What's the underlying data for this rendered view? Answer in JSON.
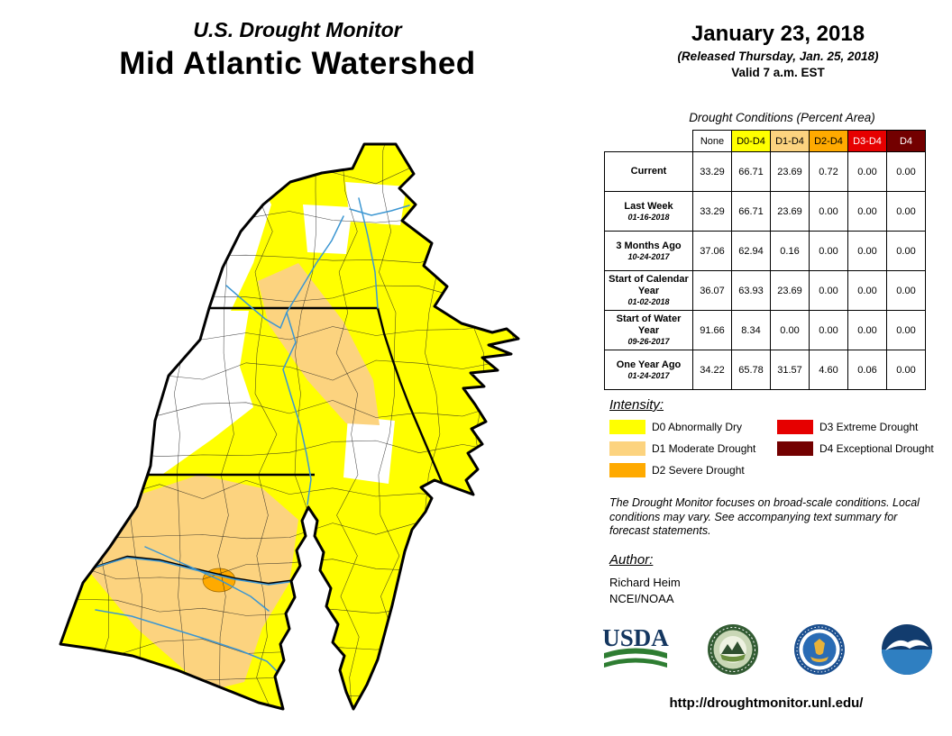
{
  "header": {
    "kicker": "U.S. Drought Monitor",
    "title": "Mid Atlantic Watershed",
    "date": "January 23, 2018",
    "released": "(Released Thursday, Jan. 25, 2018)",
    "valid": "Valid 7 a.m. EST"
  },
  "table": {
    "title": "Drought Conditions (Percent Area)",
    "columns": [
      "None",
      "D0-D4",
      "D1-D4",
      "D2-D4",
      "D3-D4",
      "D4"
    ],
    "header_colors": [
      "#ffffff",
      "#ffff00",
      "#fcd37f",
      "#ffaa00",
      "#e60000",
      "#730000"
    ],
    "rows": [
      {
        "label": "Current",
        "date": "",
        "values": [
          "33.29",
          "66.71",
          "23.69",
          "0.72",
          "0.00",
          "0.00"
        ]
      },
      {
        "label": "Last Week",
        "date": "01-16-2018",
        "values": [
          "33.29",
          "66.71",
          "23.69",
          "0.00",
          "0.00",
          "0.00"
        ]
      },
      {
        "label": "3 Months Ago",
        "date": "10-24-2017",
        "values": [
          "37.06",
          "62.94",
          "0.16",
          "0.00",
          "0.00",
          "0.00"
        ]
      },
      {
        "label": "Start of Calendar Year",
        "date": "01-02-2018",
        "values": [
          "36.07",
          "63.93",
          "23.69",
          "0.00",
          "0.00",
          "0.00"
        ]
      },
      {
        "label": "Start of Water Year",
        "date": "09-26-2017",
        "values": [
          "91.66",
          "8.34",
          "0.00",
          "0.00",
          "0.00",
          "0.00"
        ]
      },
      {
        "label": "One Year Ago",
        "date": "01-24-2017",
        "values": [
          "34.22",
          "65.78",
          "31.57",
          "4.60",
          "0.06",
          "0.00"
        ]
      }
    ]
  },
  "legend": {
    "title": "Intensity:",
    "items": [
      {
        "label": "D0 Abnormally Dry",
        "color": "#ffff00"
      },
      {
        "label": "D1 Moderate Drought",
        "color": "#fcd37f"
      },
      {
        "label": "D2 Severe Drought",
        "color": "#ffaa00"
      },
      {
        "label": "D3 Extreme Drought",
        "color": "#e60000"
      },
      {
        "label": "D4 Exceptional Drought",
        "color": "#730000"
      }
    ]
  },
  "disclaimer": "The Drought Monitor focuses on broad-scale conditions. Local conditions may vary. See accompanying text summary for forecast statements.",
  "author": {
    "heading": "Author:",
    "name": "Richard Heim",
    "org": "NCEI/NOAA"
  },
  "logos": {
    "usda_text": "USDA",
    "items": [
      "usda-logo",
      "ndmc-logo",
      "commerce-seal-logo",
      "noaa-logo"
    ]
  },
  "url": "http://droughtmonitor.unl.edu/",
  "map": {
    "region": "Mid Atlantic Watershed",
    "colors": {
      "none": "#ffffff",
      "d0": "#ffff00",
      "d1": "#fcd37f",
      "d2": "#ffaa00",
      "river": "#3b96d2",
      "boundary": "#000000"
    }
  }
}
